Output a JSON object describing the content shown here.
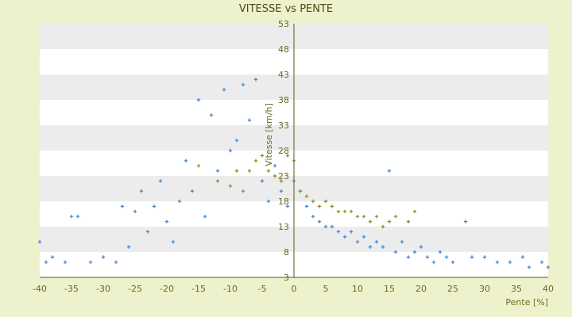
{
  "chart_data": {
    "type": "scatter",
    "title": "VITESSE vs PENTE",
    "xlabel": "Pente [%]",
    "ylabel": "Vitesse [km/h]",
    "xlim": [
      -40,
      40
    ],
    "ylim": [
      3,
      53
    ],
    "x_ticks": [
      "-40",
      "-35",
      "-30",
      "-25",
      "-20",
      "-15",
      "-10",
      "-5",
      "0",
      "5",
      "10",
      "15",
      "20",
      "25",
      "30",
      "35",
      "40"
    ],
    "y_ticks": [
      "3",
      "8",
      "13",
      "18",
      "23",
      "28",
      "33",
      "38",
      "43",
      "48",
      "53"
    ],
    "grid": "horizontal alternating bands",
    "legend": "none",
    "colors": {
      "background": "#eef2cc",
      "plot_band_light": "#ffffff",
      "plot_band_dark": "#ececec",
      "primary_series": "#3a86d4",
      "secondary_series": "#8a8a1a",
      "axis": "#5a5a10"
    },
    "series": [
      {
        "marker": "plus",
        "color": "#3a86d4",
        "points": [
          [
            -40,
            10
          ],
          [
            -39,
            6
          ],
          [
            -38,
            7
          ],
          [
            -36,
            6
          ],
          [
            -35,
            15
          ],
          [
            -34,
            15
          ],
          [
            -32,
            6
          ],
          [
            -30,
            7
          ],
          [
            -28,
            6
          ],
          [
            -27,
            17
          ],
          [
            -26,
            9
          ],
          [
            -25,
            16
          ],
          [
            -24,
            20
          ],
          [
            -23,
            12
          ],
          [
            -22,
            17
          ],
          [
            -21,
            22
          ],
          [
            -20,
            14
          ],
          [
            -19,
            10
          ],
          [
            -18,
            18
          ],
          [
            -17,
            26
          ],
          [
            -16,
            20
          ],
          [
            -15,
            38
          ],
          [
            -14,
            15
          ],
          [
            -13,
            35
          ],
          [
            -12,
            24
          ],
          [
            -11,
            40
          ],
          [
            -10,
            28
          ],
          [
            -9,
            30
          ],
          [
            -8,
            41
          ],
          [
            -7,
            34
          ],
          [
            -6,
            42
          ],
          [
            -5,
            22
          ],
          [
            -4,
            18
          ],
          [
            -3,
            25
          ],
          [
            -2,
            20
          ],
          [
            -1,
            17
          ],
          [
            0,
            22
          ],
          [
            1,
            20
          ],
          [
            2,
            17
          ],
          [
            3,
            15
          ],
          [
            4,
            14
          ],
          [
            5,
            13
          ],
          [
            6,
            13
          ],
          [
            7,
            12
          ],
          [
            8,
            11
          ],
          [
            9,
            12
          ],
          [
            10,
            10
          ],
          [
            11,
            11
          ],
          [
            12,
            9
          ],
          [
            13,
            10
          ],
          [
            14,
            9
          ],
          [
            15,
            24
          ],
          [
            16,
            8
          ],
          [
            17,
            10
          ],
          [
            18,
            7
          ],
          [
            19,
            8
          ],
          [
            20,
            9
          ],
          [
            21,
            7
          ],
          [
            22,
            6
          ],
          [
            23,
            8
          ],
          [
            24,
            7
          ],
          [
            25,
            6
          ],
          [
            27,
            14
          ],
          [
            28,
            7
          ],
          [
            30,
            7
          ],
          [
            32,
            6
          ],
          [
            34,
            6
          ],
          [
            36,
            7
          ],
          [
            37,
            5
          ],
          [
            39,
            6
          ],
          [
            40,
            5
          ]
        ]
      },
      {
        "marker": "plus",
        "color": "#8a8a1a",
        "points": [
          [
            -15,
            25
          ],
          [
            -12,
            22
          ],
          [
            -10,
            21
          ],
          [
            -9,
            24
          ],
          [
            -8,
            20
          ],
          [
            -7,
            24
          ],
          [
            -6,
            26
          ],
          [
            -5,
            27
          ],
          [
            -4,
            24
          ],
          [
            -3,
            23
          ],
          [
            -2,
            22
          ],
          [
            -1,
            27
          ],
          [
            0,
            26
          ],
          [
            1,
            20
          ],
          [
            2,
            19
          ],
          [
            3,
            18
          ],
          [
            4,
            17
          ],
          [
            5,
            18
          ],
          [
            6,
            17
          ],
          [
            7,
            16
          ],
          [
            8,
            16
          ],
          [
            9,
            16
          ],
          [
            10,
            15
          ],
          [
            11,
            15
          ],
          [
            12,
            14
          ],
          [
            13,
            15
          ],
          [
            14,
            13
          ],
          [
            15,
            14
          ],
          [
            16,
            15
          ],
          [
            18,
            14
          ],
          [
            19,
            16
          ]
        ]
      }
    ]
  }
}
